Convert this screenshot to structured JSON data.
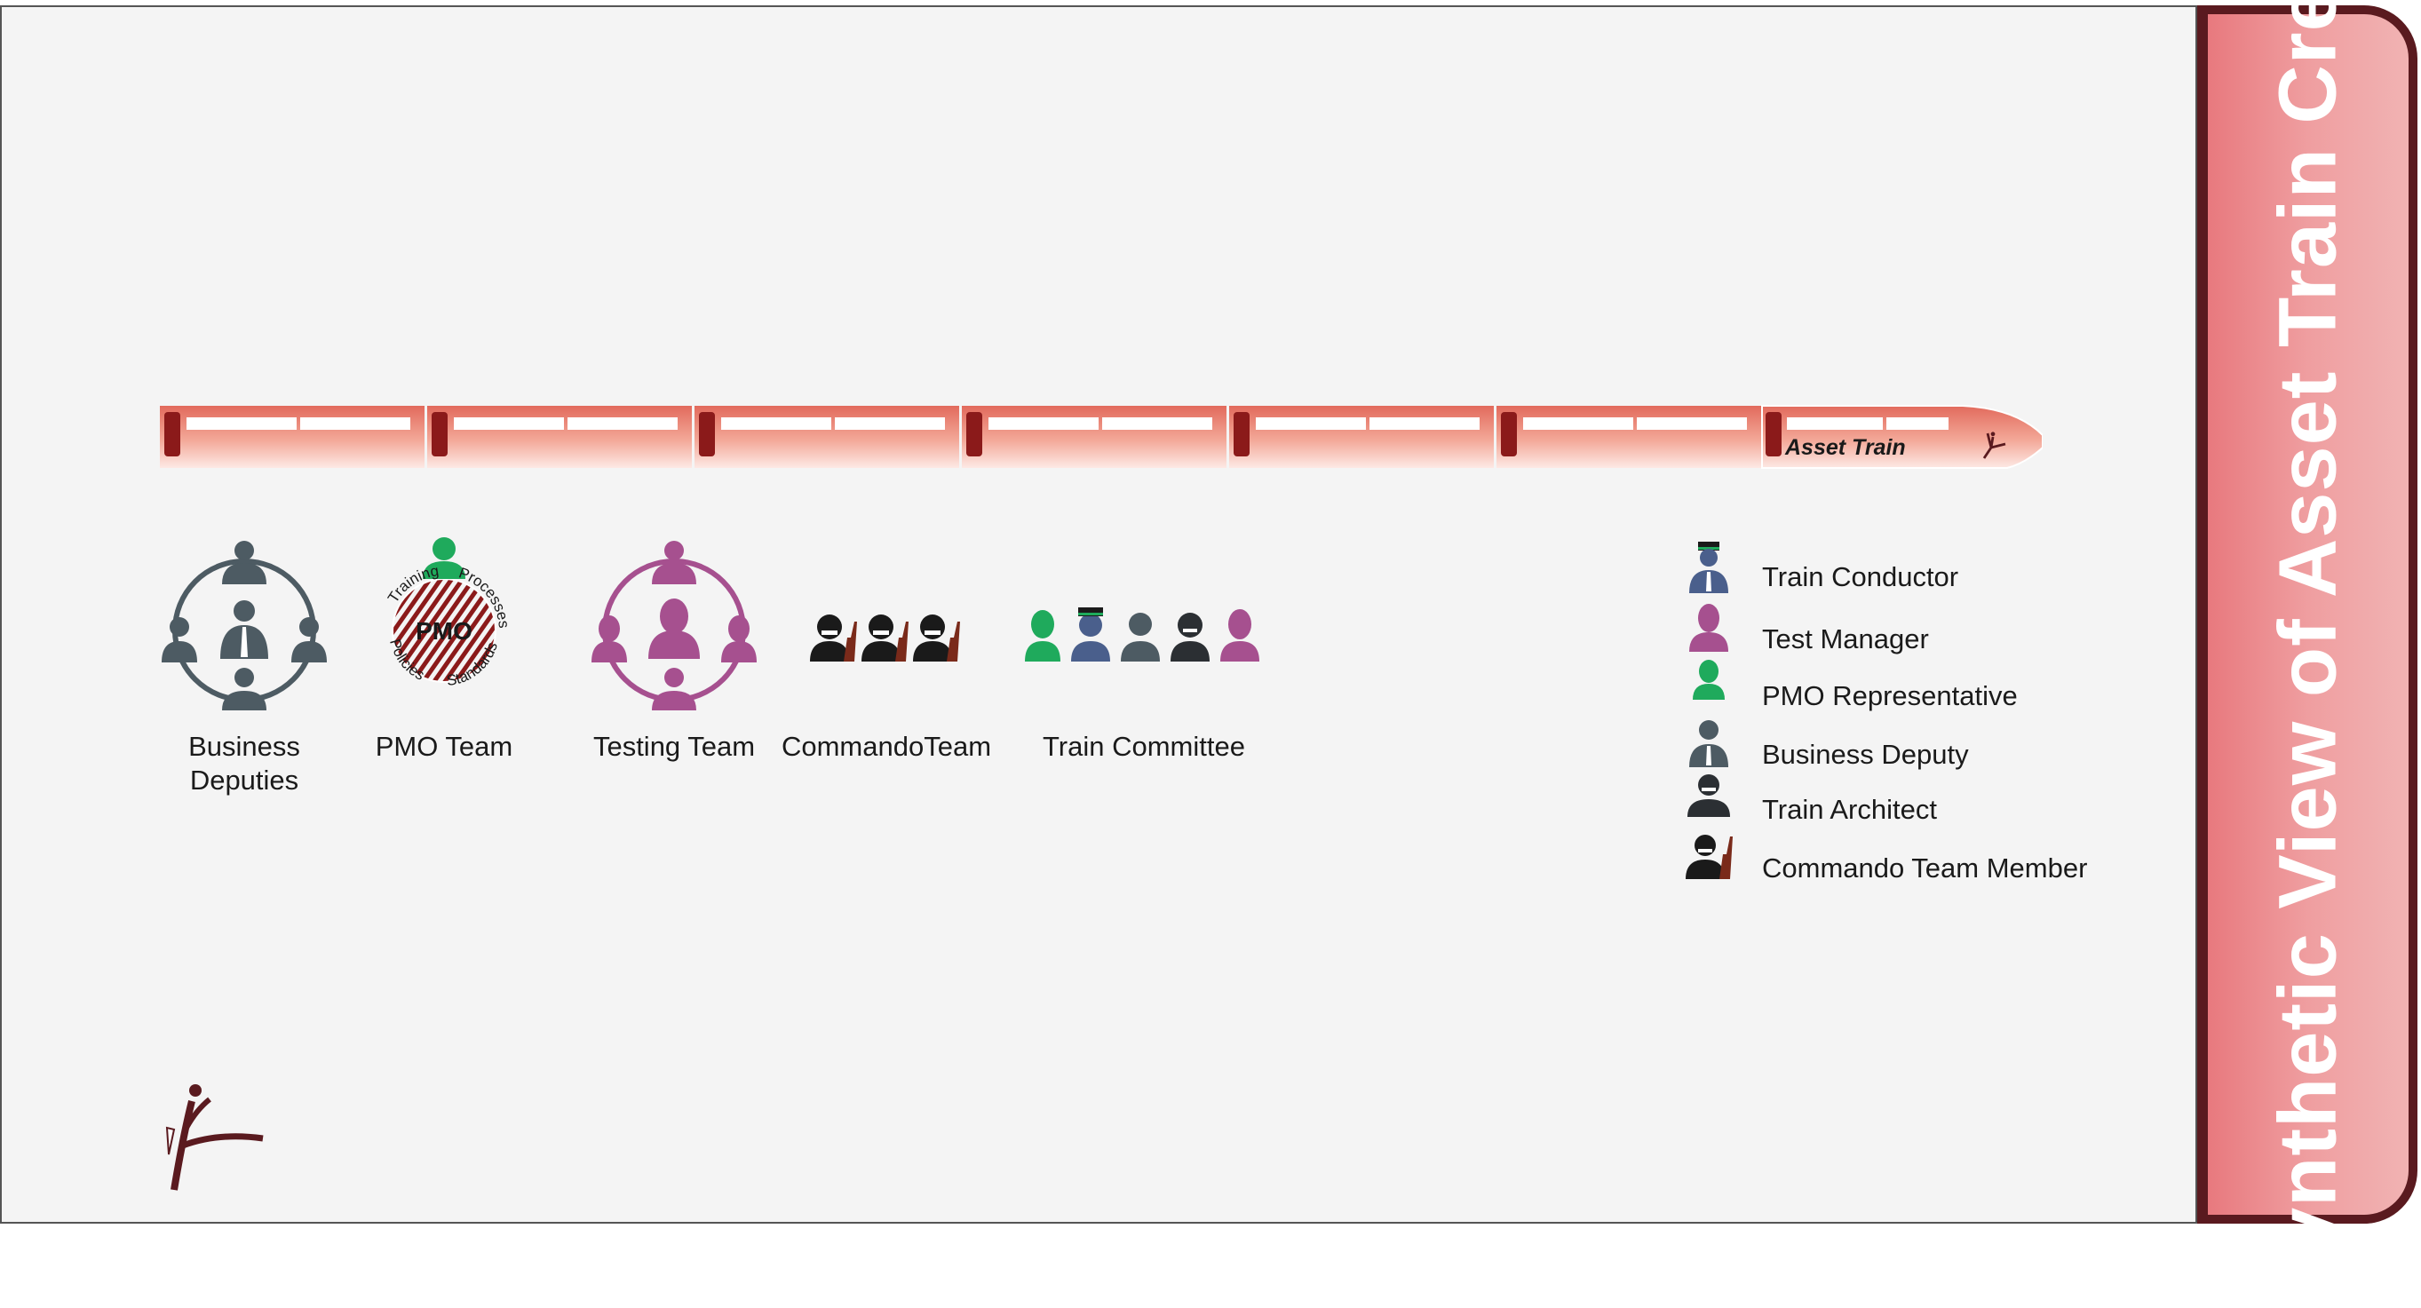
{
  "train": {
    "label": "Asset Train",
    "cars": 7
  },
  "groups": [
    {
      "name": "business-deputies",
      "label_lines": [
        "Business",
        "Deputies"
      ]
    },
    {
      "name": "pmo-team",
      "label_lines": [
        "PMO Team"
      ],
      "badge": "PMO",
      "ring_words": [
        "Training",
        "Processes",
        "Standards",
        "Policies"
      ]
    },
    {
      "name": "testing-team",
      "label_lines": [
        "Testing Team"
      ]
    },
    {
      "name": "commando-team",
      "label_lines": [
        "CommandoTeam"
      ]
    },
    {
      "name": "train-committee",
      "label_lines": [
        "Train Committee"
      ]
    }
  ],
  "legend": [
    {
      "label": "Train Conductor",
      "icon": "train-conductor-icon"
    },
    {
      "label": "Test Manager",
      "icon": "test-manager-icon"
    },
    {
      "label": "PMO Representative",
      "icon": "pmo-representative-icon"
    },
    {
      "label": "Business Deputy",
      "icon": "business-deputy-icon"
    },
    {
      "label": "Train Architect",
      "icon": "train-architect-icon"
    },
    {
      "label": "Commando Team Member",
      "icon": "commando-team-member-icon"
    }
  ],
  "panel": {
    "title": "Synthetic View of Asset Train Crew"
  },
  "colors": {
    "train": "#e57a70",
    "train_door": "#8b1a1a",
    "deputy": "#4d5b63",
    "tester": "#a6508f",
    "pmo": "#1faa5c",
    "conductor": "#4a5f8c",
    "panel": "#ea8488",
    "panel_border": "#5a1a1f"
  }
}
